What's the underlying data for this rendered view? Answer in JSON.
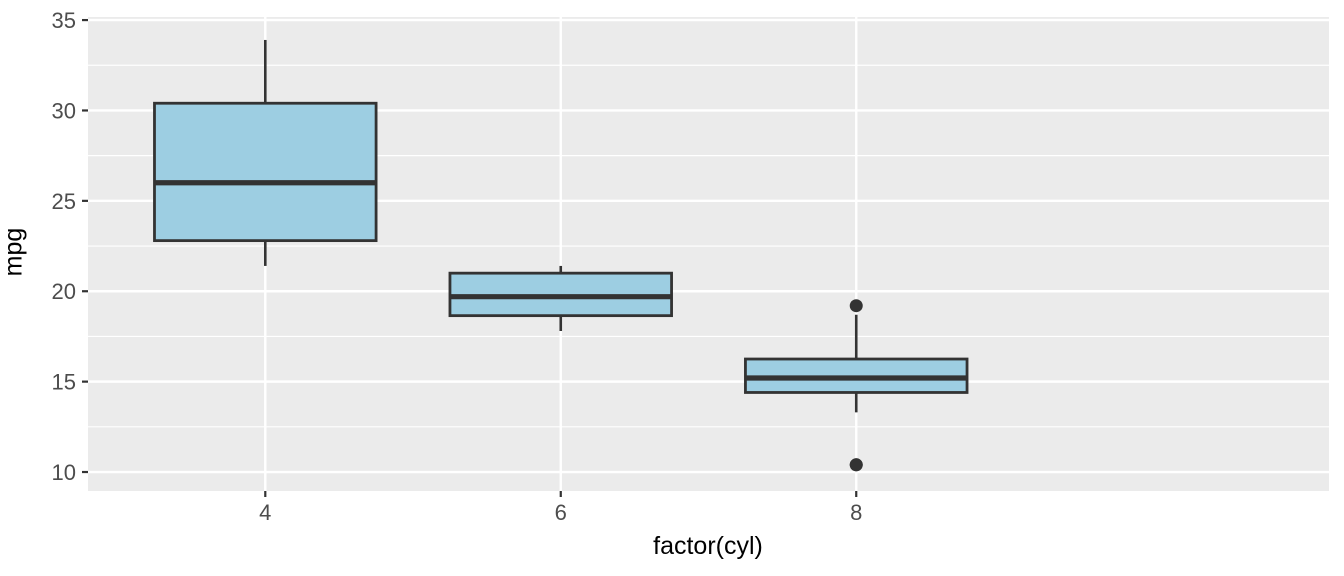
{
  "chart_data": {
    "type": "boxplot",
    "title": "",
    "xlabel": "factor(cyl)",
    "ylabel": "mpg",
    "categories": [
      "4",
      "6",
      "8"
    ],
    "boxes": [
      {
        "category": "4",
        "lower_whisker": 21.4,
        "q1": 22.8,
        "median": 26.0,
        "q3": 30.4,
        "upper_whisker": 33.9,
        "outliers": []
      },
      {
        "category": "6",
        "lower_whisker": 17.8,
        "q1": 18.65,
        "median": 19.7,
        "q3": 21.0,
        "upper_whisker": 21.4,
        "outliers": []
      },
      {
        "category": "8",
        "lower_whisker": 13.3,
        "q1": 14.4,
        "median": 15.2,
        "q3": 16.25,
        "upper_whisker": 18.7,
        "outliers": [
          19.2,
          10.4,
          10.4
        ]
      }
    ],
    "ylim": [
      8.95,
      35.17
    ],
    "yticks": [
      10,
      15,
      20,
      25,
      30,
      35
    ],
    "minor_yticks": [
      12.5,
      17.5,
      22.5,
      27.5,
      32.5
    ],
    "grid": true,
    "legend": false,
    "colors": {
      "panel_bg": "#EBEBEB",
      "grid_major": "#FFFFFF",
      "grid_minor": "#FFFFFF",
      "box_fill": "#9DCEE2",
      "box_stroke": "#333333",
      "median": "#333333",
      "whisker": "#333333",
      "outlier": "#333333",
      "tick_mark": "#333333",
      "tick_label": "#4D4D4D",
      "axis_title": "#000000"
    }
  }
}
